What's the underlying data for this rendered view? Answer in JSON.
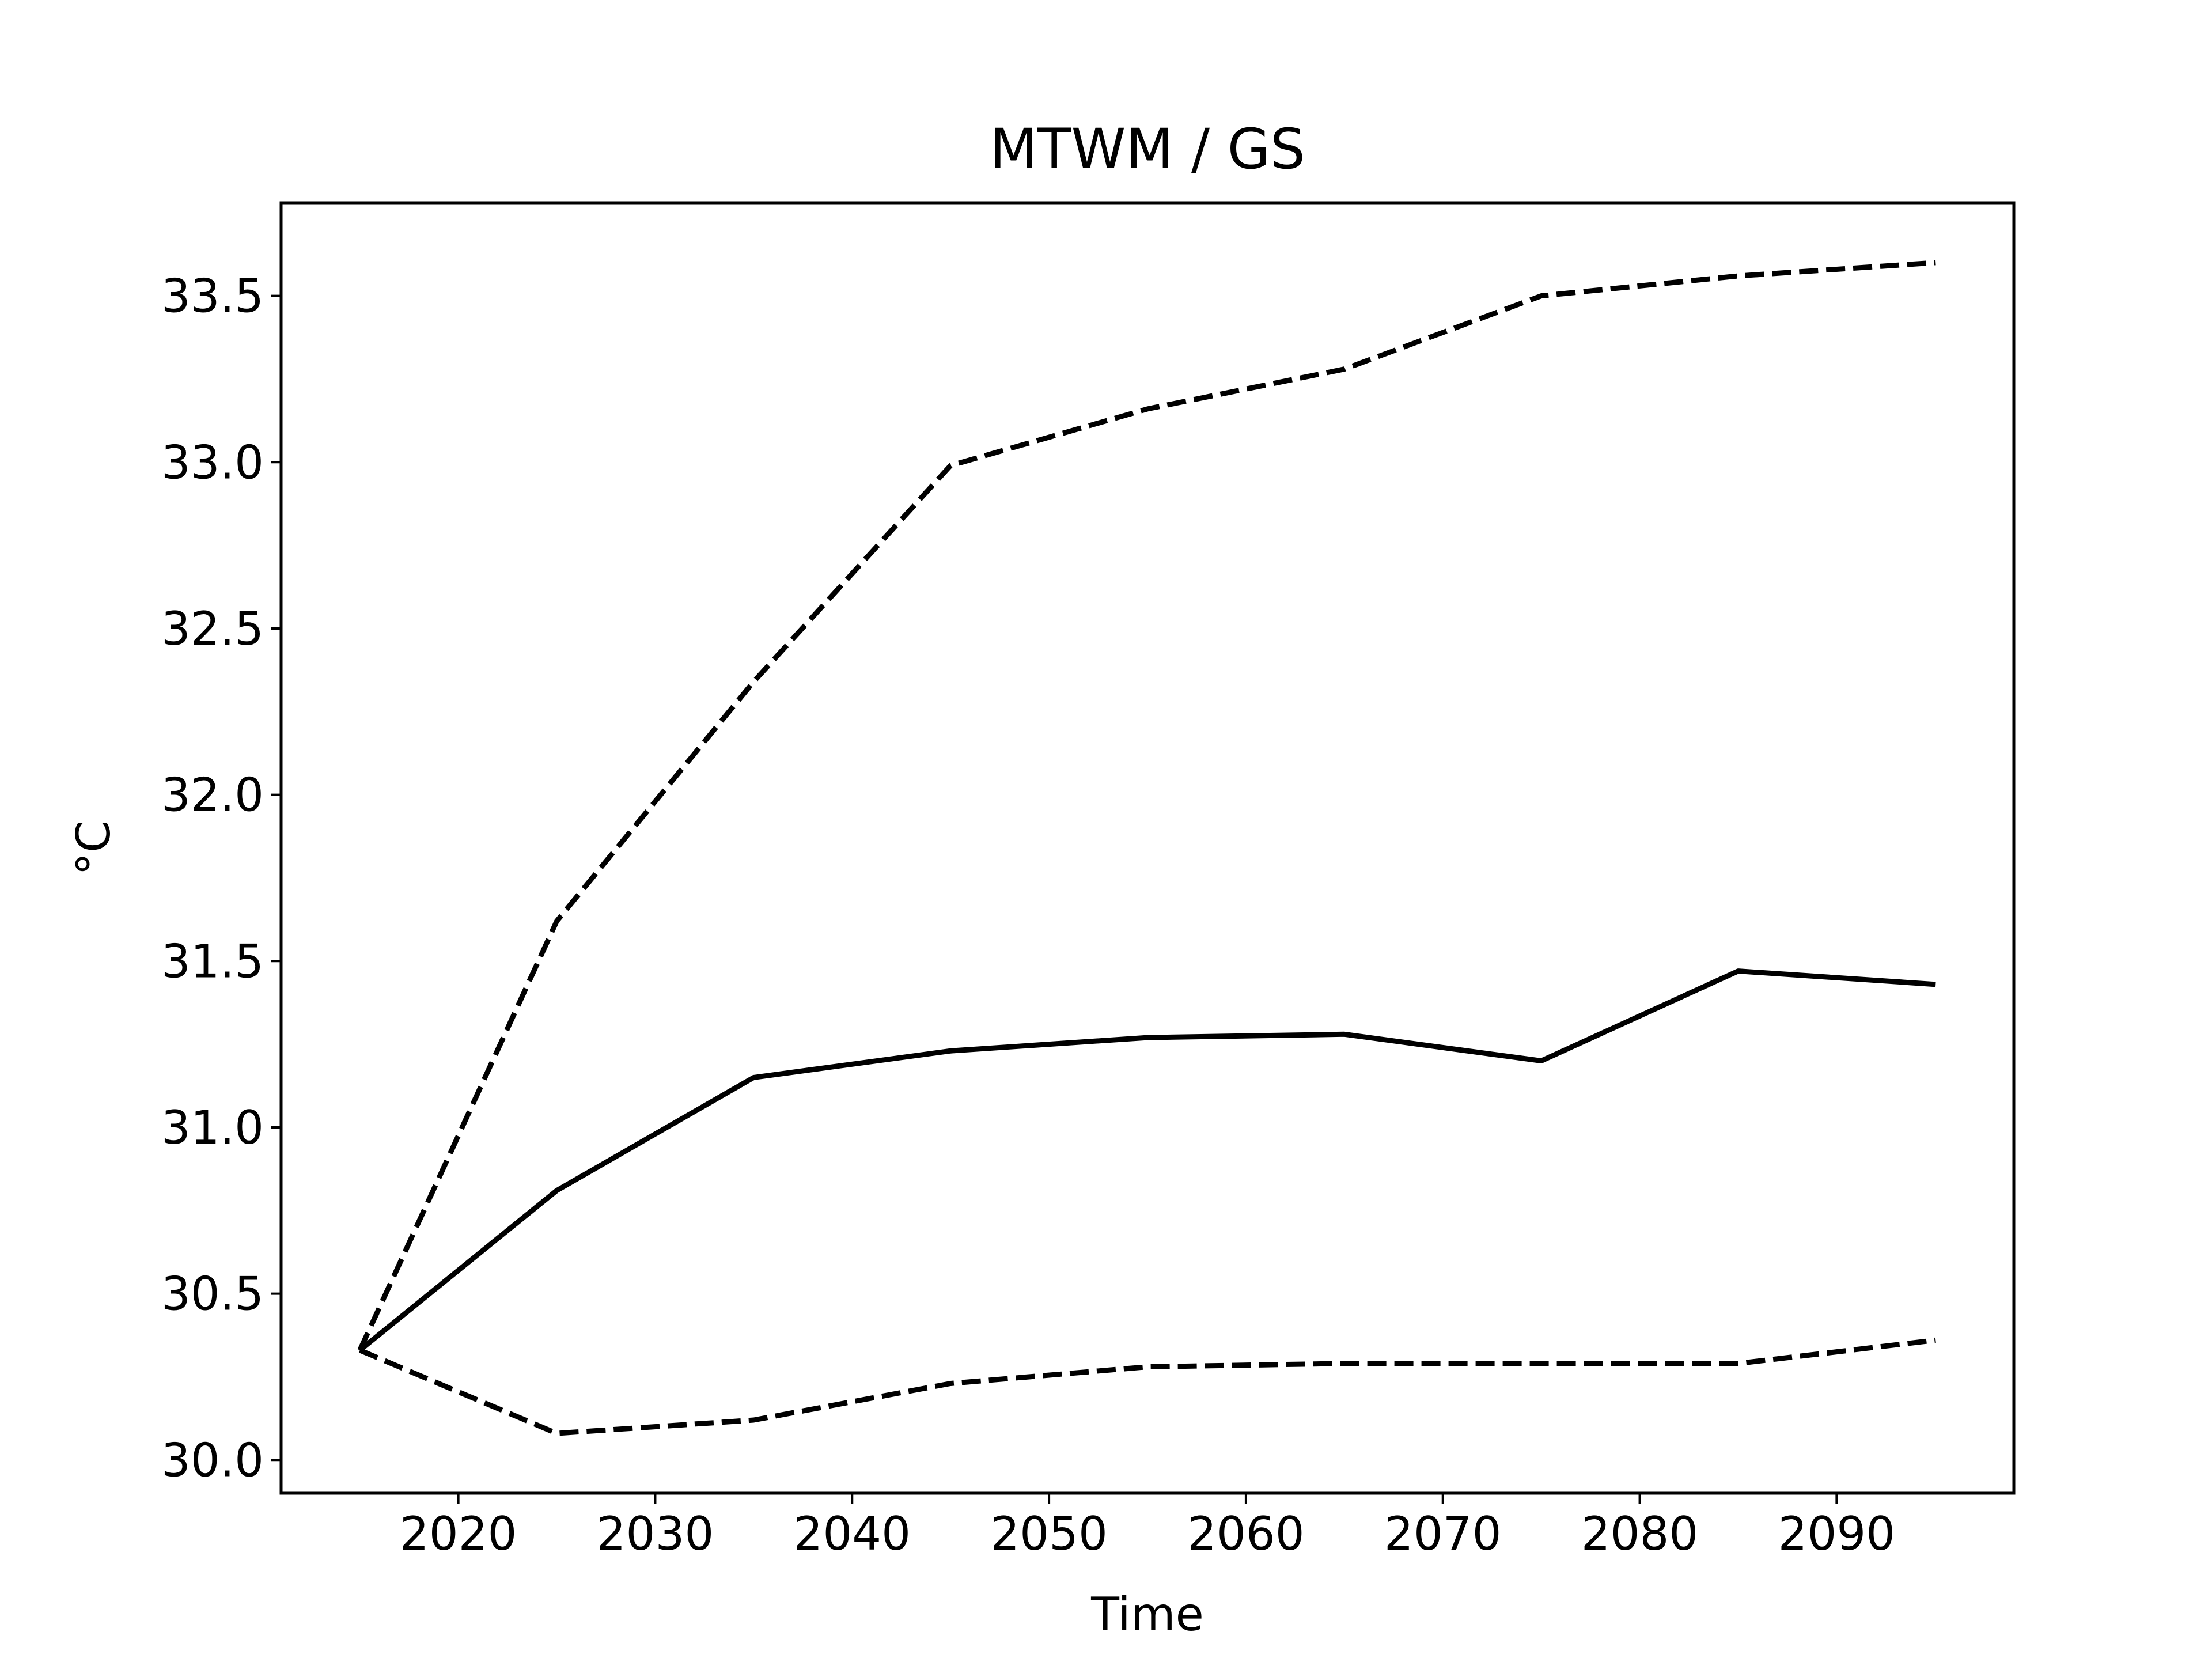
{
  "chart_data": {
    "type": "line",
    "title": "MTWM / GS",
    "xlabel": "Time",
    "ylabel": "°C",
    "xlim": [
      2011,
      2099
    ],
    "ylim": [
      29.9,
      33.78
    ],
    "grid": false,
    "x": [
      2015,
      2025,
      2035,
      2045,
      2055,
      2065,
      2075,
      2085,
      2095
    ],
    "x_ticks": [
      2020,
      2030,
      2040,
      2050,
      2060,
      2070,
      2080,
      2090
    ],
    "x_tick_labels": [
      "2020",
      "2030",
      "2040",
      "2050",
      "2060",
      "2070",
      "2080",
      "2090"
    ],
    "y_ticks": [
      30.0,
      30.5,
      31.0,
      31.5,
      32.0,
      32.5,
      33.0,
      33.5
    ],
    "y_tick_labels": [
      "30.0",
      "30.5",
      "31.0",
      "31.5",
      "32.0",
      "32.5",
      "33.0",
      "33.5"
    ],
    "series": [
      {
        "style": "solid",
        "color": "#000000",
        "values": [
          30.33,
          30.81,
          31.15,
          31.23,
          31.27,
          31.28,
          31.2,
          31.47,
          31.43
        ]
      },
      {
        "style": "dashed",
        "color": "#000000",
        "values": [
          30.33,
          31.62,
          32.34,
          32.99,
          33.16,
          33.28,
          33.5,
          33.56,
          33.6
        ]
      },
      {
        "style": "dashed",
        "color": "#000000",
        "values": [
          30.33,
          30.08,
          30.12,
          30.23,
          30.28,
          30.29,
          30.29,
          30.29,
          30.36
        ]
      }
    ]
  }
}
